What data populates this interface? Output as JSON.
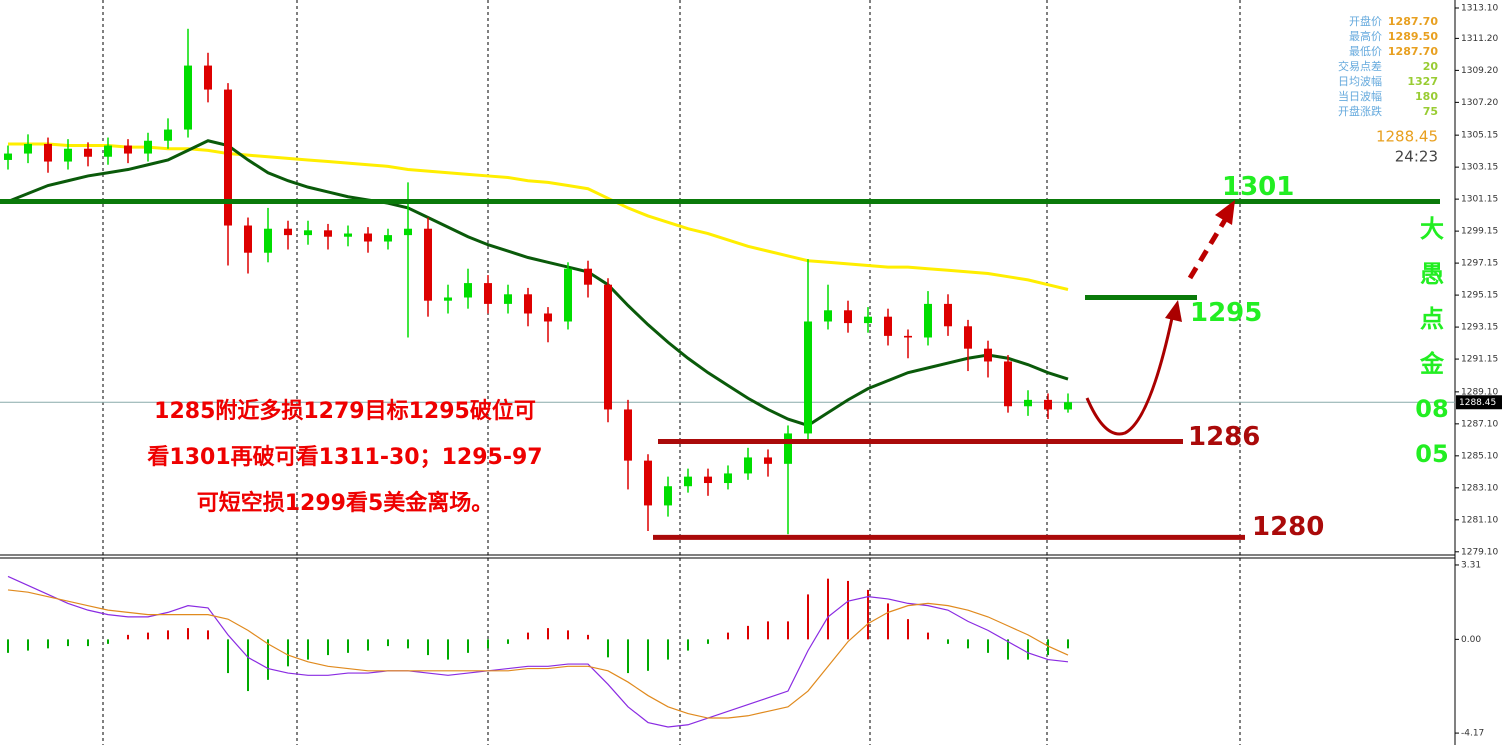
{
  "chart_data": {
    "type": "candlestick",
    "ylim": [
      1278.9,
      1313.6
    ],
    "yticks": [
      {
        "value": 1313.1,
        "label": "1313.10"
      },
      {
        "value": 1311.2,
        "label": "1311.20"
      },
      {
        "value": 1309.2,
        "label": "1309.20"
      },
      {
        "value": 1307.2,
        "label": "1307.20"
      },
      1305.15,
      1303.15,
      1301.15,
      1299.15,
      1297.15,
      1295.15,
      1293.15,
      1291.15,
      {
        "value": 1289.1,
        "label": "1289.10"
      },
      {
        "value": 1287.1,
        "label": "1287.10"
      },
      {
        "value": 1285.1,
        "label": "1285.10"
      },
      {
        "value": 1283.1,
        "label": "1283.10"
      },
      {
        "value": 1281.1,
        "label": "1281.10"
      },
      {
        "value": 1279.1,
        "label": "1279.10"
      }
    ],
    "up_color": "#00dd00",
    "down_color": "#dd0000",
    "open": [
      1303.6,
      1304.0,
      1304.6,
      1303.5,
      1304.3,
      1303.8,
      1304.5,
      1304.0,
      1304.8,
      1305.5,
      1309.5,
      1308.0,
      1299.5,
      1297.8,
      1299.3,
      1298.9,
      1299.2,
      1298.8,
      1299.0,
      1298.5,
      1298.9,
      1299.3,
      1294.8,
      1295.0,
      1295.9,
      1294.6,
      1295.2,
      1294.0,
      1293.5,
      1296.8,
      1295.8,
      1288.0,
      1284.8,
      1282.0,
      1283.2,
      1283.8,
      1283.4,
      1284.0,
      1285.0,
      1284.6,
      1286.5,
      1293.5,
      1294.2,
      1293.4,
      1293.8,
      1292.6,
      1292.5,
      1294.6,
      1293.2,
      1291.8,
      1291.0,
      1288.2,
      1288.6,
      1288.0
    ],
    "high": [
      1304.5,
      1305.2,
      1305.0,
      1304.9,
      1304.7,
      1305.0,
      1304.9,
      1305.3,
      1306.2,
      1311.8,
      1310.3,
      1308.4,
      1300.0,
      1300.6,
      1299.8,
      1299.8,
      1299.6,
      1299.5,
      1299.4,
      1299.3,
      1302.2,
      1300.0,
      1295.8,
      1296.8,
      1296.4,
      1295.8,
      1295.6,
      1294.4,
      1297.2,
      1297.3,
      1296.2,
      1288.6,
      1285.2,
      1283.8,
      1284.3,
      1284.3,
      1284.5,
      1285.6,
      1285.5,
      1287.0,
      1297.4,
      1295.8,
      1294.8,
      1294.4,
      1294.3,
      1293.0,
      1295.4,
      1295.2,
      1293.6,
      1292.3,
      1291.4,
      1289.2,
      1289.0,
      1289.0
    ],
    "low": [
      1303.0,
      1303.4,
      1302.8,
      1303.0,
      1303.2,
      1303.3,
      1303.4,
      1303.5,
      1304.3,
      1305.0,
      1307.2,
      1297.0,
      1296.5,
      1297.2,
      1298.0,
      1298.3,
      1298.0,
      1298.2,
      1297.8,
      1298.0,
      1292.5,
      1293.8,
      1294.0,
      1294.3,
      1294.0,
      1294.0,
      1293.2,
      1292.2,
      1293.0,
      1295.0,
      1287.2,
      1283.0,
      1280.4,
      1281.3,
      1282.8,
      1282.6,
      1283.0,
      1283.6,
      1283.8,
      1280.2,
      1286.0,
      1293.0,
      1292.8,
      1292.8,
      1292.0,
      1291.2,
      1292.0,
      1292.6,
      1290.4,
      1290.0,
      1287.8,
      1287.6,
      1287.4,
      1287.8
    ],
    "close": [
      1304.0,
      1304.6,
      1303.5,
      1304.3,
      1303.8,
      1304.5,
      1304.0,
      1304.8,
      1305.5,
      1309.5,
      1308.0,
      1299.5,
      1297.8,
      1299.3,
      1298.9,
      1299.2,
      1298.8,
      1299.0,
      1298.5,
      1298.9,
      1299.3,
      1294.8,
      1295.0,
      1295.9,
      1294.6,
      1295.2,
      1294.0,
      1293.5,
      1296.8,
      1295.8,
      1288.0,
      1284.8,
      1282.0,
      1283.2,
      1283.8,
      1283.4,
      1284.0,
      1285.0,
      1284.6,
      1286.5,
      1293.5,
      1294.2,
      1293.4,
      1293.8,
      1292.6,
      1292.5,
      1294.6,
      1293.2,
      1291.8,
      1291.0,
      1288.2,
      1288.6,
      1288.0,
      1288.45
    ],
    "ma_lines": [
      {
        "color": "#ffee00",
        "values": [
          1304.6,
          1304.6,
          1304.6,
          1304.5,
          1304.5,
          1304.5,
          1304.4,
          1304.4,
          1304.3,
          1304.3,
          1304.2,
          1304.0,
          1303.9,
          1303.8,
          1303.7,
          1303.6,
          1303.5,
          1303.4,
          1303.3,
          1303.2,
          1303.0,
          1302.9,
          1302.8,
          1302.7,
          1302.6,
          1302.5,
          1302.3,
          1302.2,
          1302.0,
          1301.8,
          1301.2,
          1300.6,
          1300.1,
          1299.7,
          1299.3,
          1299.0,
          1298.6,
          1298.2,
          1297.9,
          1297.6,
          1297.3,
          1297.2,
          1297.1,
          1297.0,
          1296.9,
          1296.9,
          1296.8,
          1296.7,
          1296.6,
          1296.5,
          1296.3,
          1296.1,
          1295.8,
          1295.5
        ]
      },
      {
        "color": "#0a5a0a",
        "values": [
          1301.0,
          1301.5,
          1302.0,
          1302.3,
          1302.6,
          1302.8,
          1303.0,
          1303.3,
          1303.6,
          1304.2,
          1304.8,
          1304.5,
          1303.6,
          1302.8,
          1302.3,
          1301.9,
          1301.6,
          1301.3,
          1301.1,
          1300.9,
          1300.6,
          1300.0,
          1299.4,
          1298.8,
          1298.3,
          1297.9,
          1297.5,
          1297.2,
          1296.9,
          1296.6,
          1295.8,
          1294.5,
          1293.3,
          1292.2,
          1291.2,
          1290.3,
          1289.5,
          1288.7,
          1288.0,
          1287.4,
          1287.0,
          1287.8,
          1288.6,
          1289.3,
          1289.8,
          1290.3,
          1290.6,
          1290.9,
          1291.2,
          1291.4,
          1291.2,
          1290.8,
          1290.3,
          1289.9
        ]
      }
    ],
    "levels": [
      {
        "value": 1301,
        "color": "#0a7a0a",
        "label_color": "#22ee22"
      },
      {
        "value": 1295,
        "color": "#0a7a0a",
        "label_color": "#22ee22"
      },
      {
        "value": 1286,
        "color": "#aa0a0a",
        "label_color": "#aa0a0a"
      },
      {
        "value": 1280,
        "color": "#aa0a0a",
        "label_color": "#aa0a0a"
      }
    ],
    "last_price": 1288.45,
    "annotation": [
      "1285附近多损1279目标1295破位可",
      "看1301再破可看1311-30；1295-97",
      "可短空损1299看5美金离场。"
    ],
    "signature": [
      "大",
      "愚",
      "点",
      "金",
      "08",
      "05"
    ],
    "info": [
      {
        "label": "开盘价",
        "value": "1287.70"
      },
      {
        "label": "最高价",
        "value": "1289.50"
      },
      {
        "label": "最低价",
        "value": "1287.70"
      },
      {
        "label": "交易点差",
        "value": "20"
      },
      {
        "label": "日均波幅",
        "value": "1327"
      },
      {
        "label": "当日波幅",
        "value": "180"
      },
      {
        "label": "开盘涨跌",
        "value": "75"
      }
    ],
    "timer": "24:23",
    "macd": {
      "ylim": [
        -4.7,
        3.62
      ],
      "yticks": [
        3.31,
        {
          "value": 0,
          "label": "0.00"
        },
        -4.17
      ],
      "histogram": [
        -0.6,
        -0.5,
        -0.4,
        -0.3,
        -0.3,
        -0.2,
        0.2,
        0.3,
        0.4,
        0.5,
        0.4,
        -1.5,
        -2.3,
        -1.8,
        -1.2,
        -0.9,
        -0.7,
        -0.6,
        -0.5,
        -0.3,
        -0.4,
        -0.7,
        -0.9,
        -0.6,
        -0.4,
        -0.2,
        0.3,
        0.5,
        0.4,
        0.2,
        -0.8,
        -1.5,
        -1.4,
        -0.9,
        -0.5,
        -0.2,
        0.3,
        0.6,
        0.8,
        0.8,
        2.0,
        2.7,
        2.6,
        2.2,
        1.6,
        0.9,
        0.3,
        -0.2,
        -0.4,
        -0.6,
        -0.9,
        -0.9,
        -0.7,
        -0.4
      ],
      "macd_color": "#8a2be2",
      "signal_color": "#e08a1e",
      "macd": [
        2.8,
        2.4,
        2.0,
        1.6,
        1.3,
        1.1,
        1.0,
        1.0,
        1.2,
        1.5,
        1.4,
        0.2,
        -0.8,
        -1.3,
        -1.5,
        -1.6,
        -1.6,
        -1.5,
        -1.5,
        -1.4,
        -1.4,
        -1.5,
        -1.6,
        -1.5,
        -1.4,
        -1.3,
        -1.2,
        -1.2,
        -1.1,
        -1.1,
        -2.0,
        -3.0,
        -3.7,
        -3.9,
        -3.8,
        -3.5,
        -3.2,
        -2.9,
        -2.6,
        -2.3,
        -0.5,
        1.0,
        1.7,
        1.9,
        1.8,
        1.6,
        1.5,
        1.3,
        0.8,
        0.4,
        -0.1,
        -0.6,
        -0.9,
        -1.0
      ],
      "signal": [
        2.2,
        2.1,
        1.9,
        1.7,
        1.5,
        1.3,
        1.2,
        1.1,
        1.1,
        1.1,
        1.1,
        0.9,
        0.4,
        -0.2,
        -0.7,
        -1.0,
        -1.2,
        -1.3,
        -1.4,
        -1.4,
        -1.4,
        -1.4,
        -1.4,
        -1.4,
        -1.4,
        -1.4,
        -1.3,
        -1.3,
        -1.2,
        -1.2,
        -1.4,
        -1.9,
        -2.5,
        -3.0,
        -3.3,
        -3.5,
        -3.5,
        -3.4,
        -3.2,
        -3.0,
        -2.3,
        -1.2,
        -0.1,
        0.7,
        1.2,
        1.5,
        1.6,
        1.5,
        1.3,
        1.0,
        0.6,
        0.2,
        -0.3,
        -0.7
      ]
    }
  }
}
